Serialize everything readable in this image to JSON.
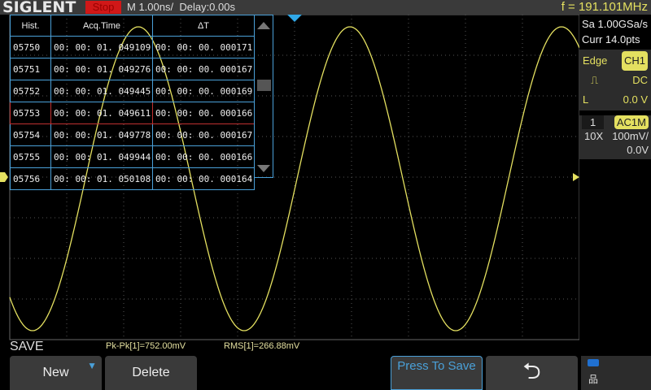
{
  "header": {
    "brand": "SIGLENT",
    "run_state": "Stop",
    "timebase": "M 1.00ns/",
    "delay": "Delay:0.00s",
    "frequency": "f = 191.101MHz"
  },
  "history": {
    "columns": [
      "Hist.",
      "Acq.Time",
      "ΔT"
    ],
    "selected": "05753",
    "rows": [
      [
        "05750",
        "00: 00: 01. 049109",
        "00: 00: 00. 000171"
      ],
      [
        "05751",
        "00: 00: 01. 049276",
        "00: 00: 00. 000167"
      ],
      [
        "05752",
        "00: 00: 01. 049445",
        "00: 00: 00. 000169"
      ],
      [
        "05753",
        "00: 00: 01. 049611",
        "00: 00: 00. 000166"
      ],
      [
        "05754",
        "00: 00: 01. 049778",
        "00: 00: 00. 000167"
      ],
      [
        "05755",
        "00: 00: 01. 049944",
        "00: 00: 00. 000166"
      ],
      [
        "05756",
        "00: 00: 01. 050108",
        "00: 00: 00. 000164"
      ]
    ]
  },
  "acquisition": {
    "sample_rate": "Sa 1.00GSa/s",
    "memory": "Curr 14.0pts"
  },
  "trigger": {
    "type": "Edge",
    "source": "CH1",
    "coupling": "DC",
    "level_label": "L",
    "level": "0.0 V",
    "slope_icon": "rising-edge-icon"
  },
  "channel": {
    "number": "1",
    "coupling": "AC1M",
    "probe": "10X",
    "scale": "100mV/",
    "offset": "0.0V",
    "marker": "1"
  },
  "measurements": {
    "menu": "SAVE",
    "pkpk": "Pk-Pk[1]=752.00mV",
    "rms": "RMS[1]=266.88mV"
  },
  "softkeys": {
    "new": "New",
    "delete": "Delete",
    "press_to_save": "Press To Save"
  },
  "colors": {
    "trace": "#e4e060",
    "accent": "#4aa0d8",
    "stop": "#d01818"
  }
}
